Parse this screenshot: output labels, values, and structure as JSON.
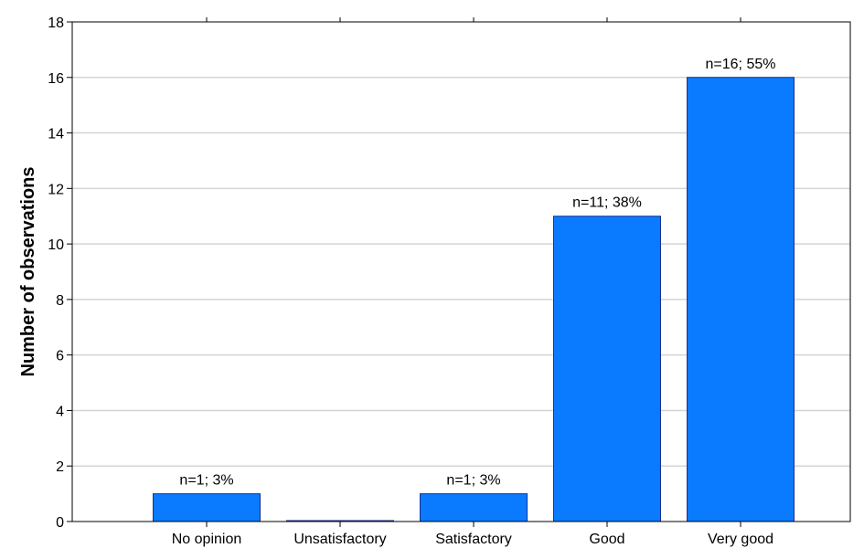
{
  "chart_data": {
    "type": "bar",
    "title": "",
    "xlabel": "",
    "ylabel": "Number of observations",
    "ylim": [
      0,
      18
    ],
    "yticks": [
      0,
      2,
      4,
      6,
      8,
      10,
      12,
      14,
      16,
      18
    ],
    "grid": "horizontal",
    "categories": [
      "No opinion",
      "Unsatisfactory",
      "Satisfactory",
      "Good",
      "Very good"
    ],
    "values": [
      1,
      0,
      1,
      11,
      16
    ],
    "data_labels": [
      "n=1; 3%",
      "",
      "n=1; 3%",
      "n=11; 38%",
      "n=16; 55%"
    ],
    "colors": {
      "bar_fill": "#0a7bff",
      "bar_stroke": "#1a2f8f",
      "grid": "#d4d4d4",
      "axis": "#000000"
    }
  }
}
